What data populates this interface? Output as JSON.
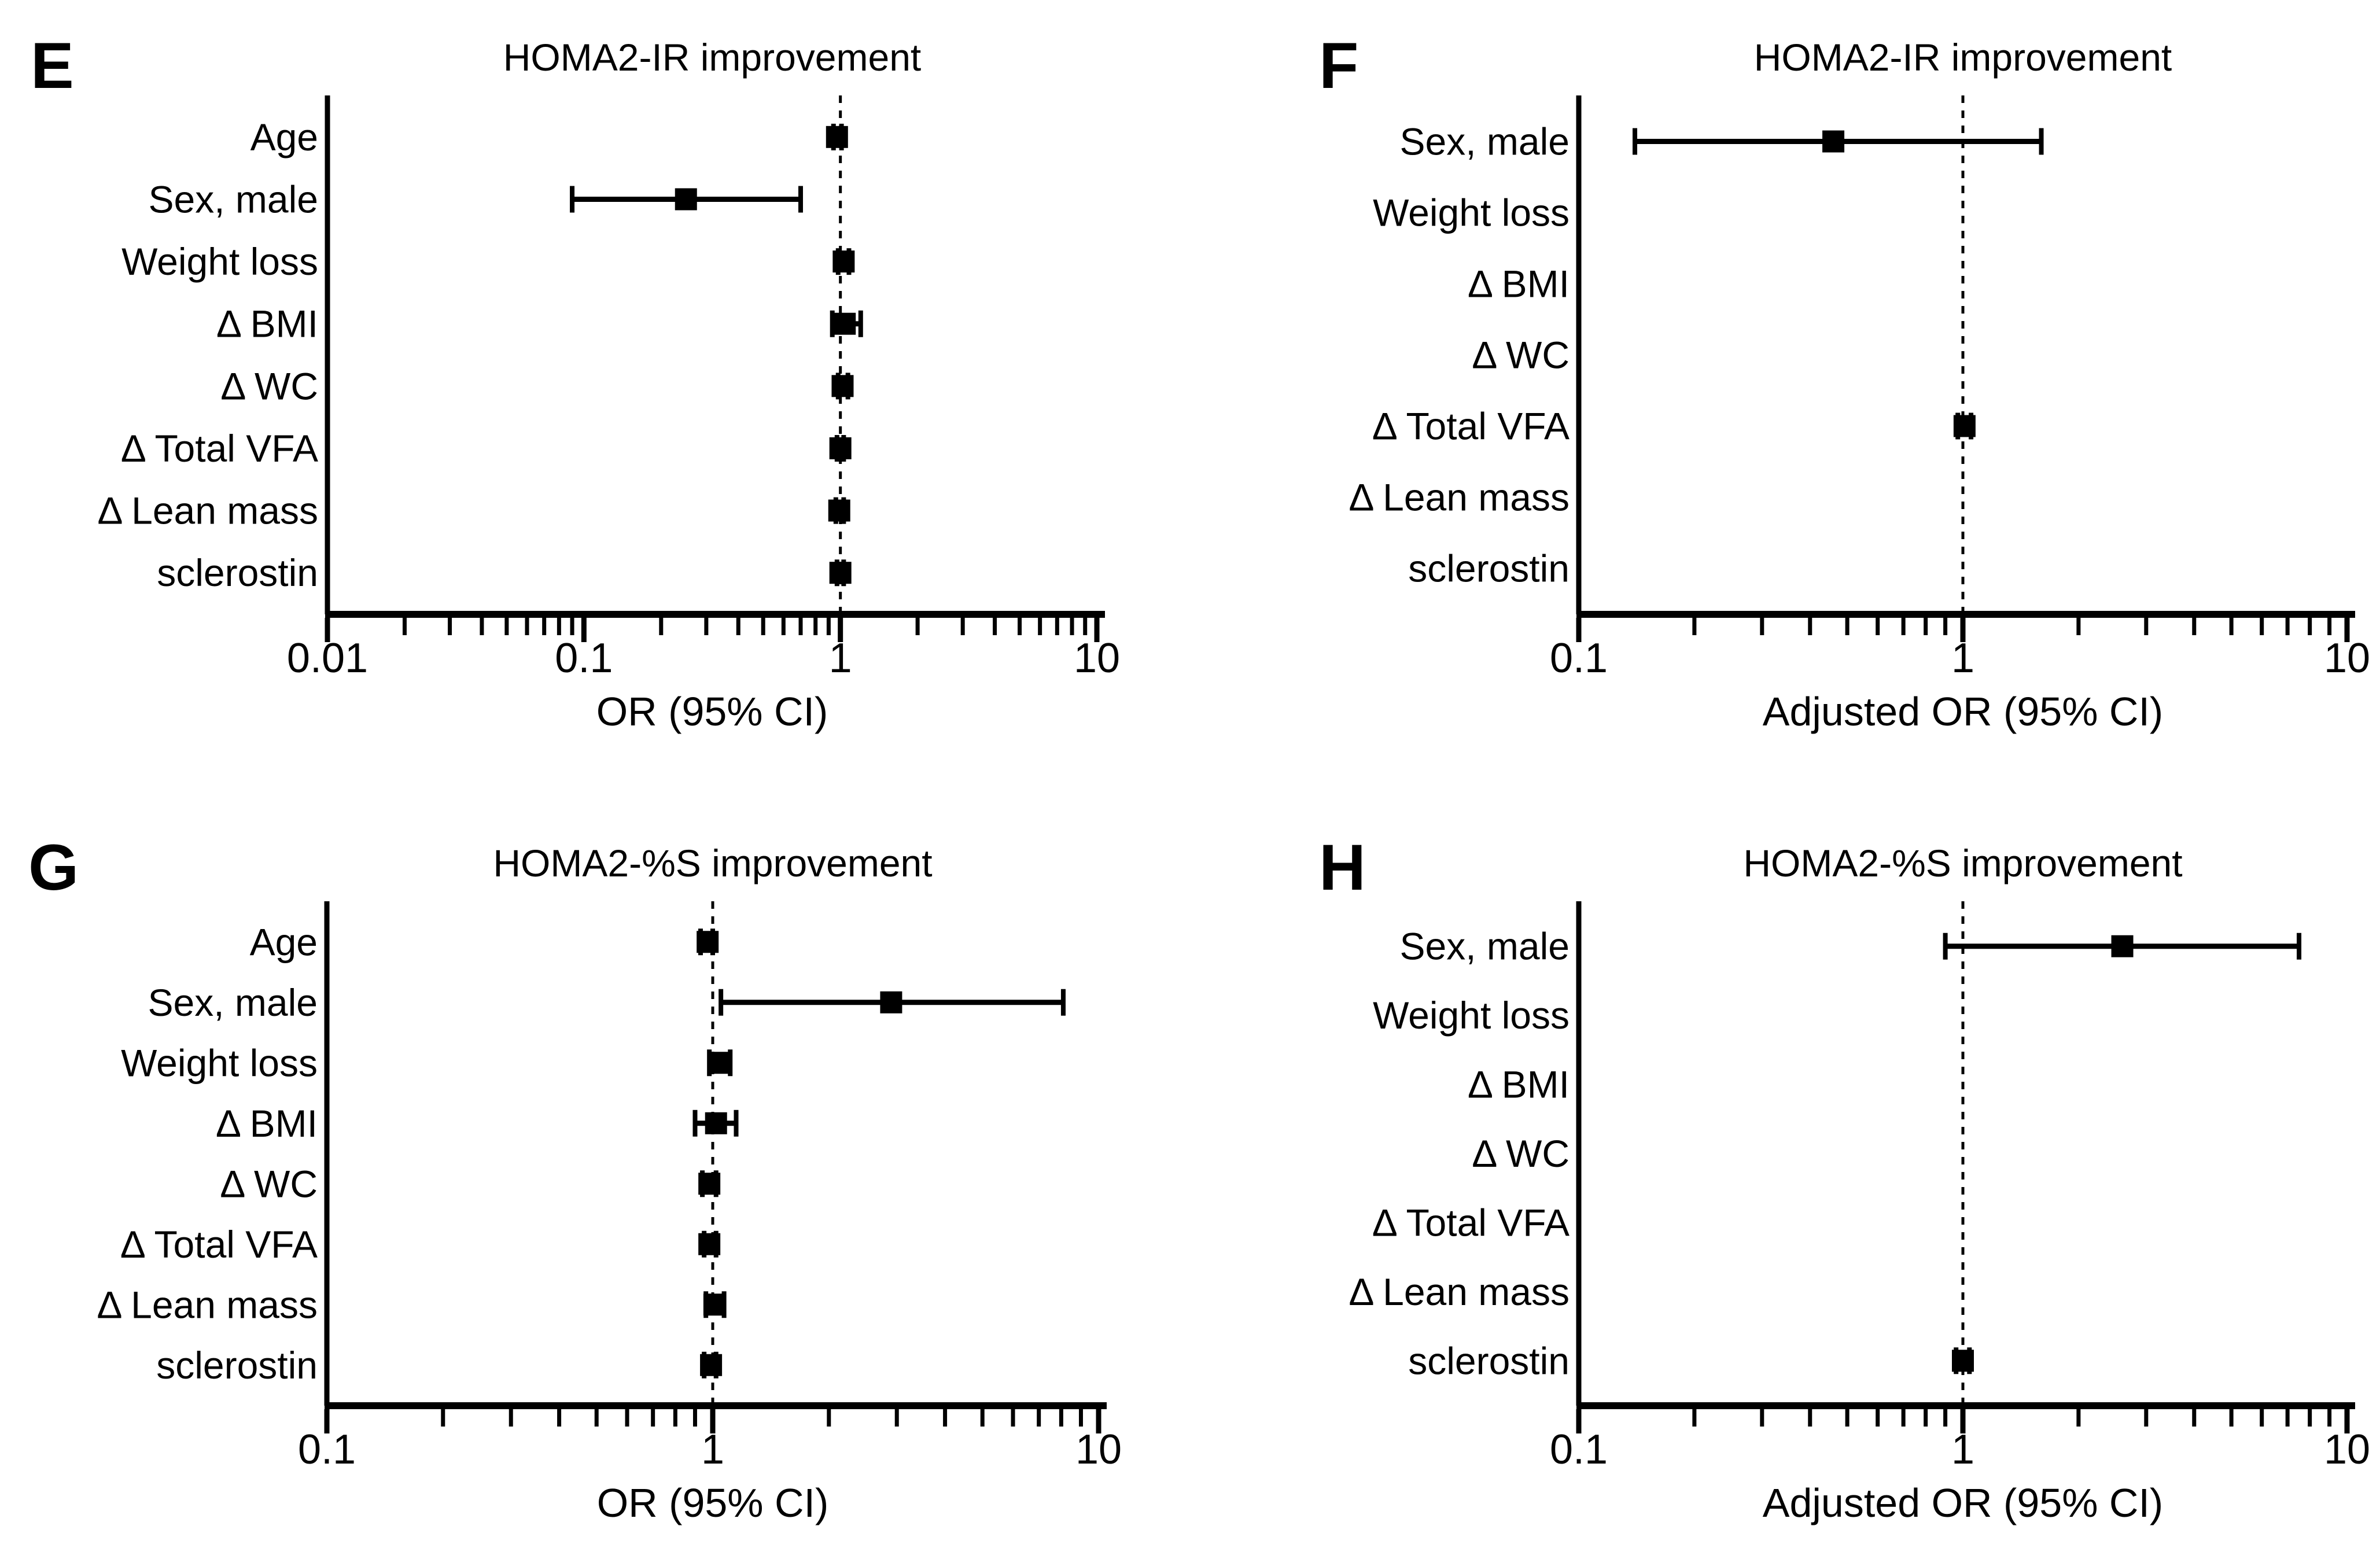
{
  "colors": {
    "background": "#ffffff",
    "ink": "#000000"
  },
  "chart_data": [
    {
      "type": "scatter",
      "variant": "forest-plot",
      "panel_letter": "E",
      "title": "HOMA2-IR improvement",
      "xlabel": "OR (95% CI)",
      "x_scale": "log",
      "xlim": [
        0.01,
        10
      ],
      "x_ticks": [
        0.01,
        0.1,
        1,
        10
      ],
      "x_tick_labels": [
        "0.01",
        "0.1",
        "1",
        "10"
      ],
      "reference_line_x": 1,
      "grid": false,
      "categories": [
        "Age",
        "Sex, male",
        "Weight loss",
        "Δ BMI",
        "Δ WC",
        "Δ Total VFA",
        "Δ Lean mass",
        "sclerostin"
      ],
      "series": [
        {
          "name": "OR",
          "values": [
            0.97,
            0.25,
            1.03,
            1.04,
            1.02,
            1.0,
            0.99,
            1.0
          ],
          "ci_low": [
            0.94,
            0.09,
            0.98,
            0.93,
            0.98,
            0.97,
            0.96,
            0.97
          ],
          "ci_high": [
            1.01,
            0.7,
            1.08,
            1.2,
            1.07,
            1.03,
            1.03,
            1.03
          ]
        }
      ]
    },
    {
      "type": "scatter",
      "variant": "forest-plot",
      "panel_letter": "F",
      "title": "HOMA2-IR improvement",
      "xlabel": "Adjusted OR (95% CI)",
      "x_scale": "log",
      "xlim": [
        0.1,
        10
      ],
      "x_ticks": [
        0.1,
        1,
        10
      ],
      "x_tick_labels": [
        "0.1",
        "1",
        "10"
      ],
      "reference_line_x": 1,
      "grid": false,
      "categories": [
        "Sex, male",
        "Weight loss",
        "Δ BMI",
        "Δ WC",
        "Δ Total VFA",
        "Δ Lean mass",
        "sclerostin"
      ],
      "series": [
        {
          "name": "Adjusted OR",
          "values": [
            0.46,
            null,
            null,
            null,
            1.01,
            null,
            null
          ],
          "ci_low": [
            0.14,
            null,
            null,
            null,
            0.97,
            null,
            null
          ],
          "ci_high": [
            1.6,
            null,
            null,
            null,
            1.05,
            null,
            null
          ]
        }
      ]
    },
    {
      "type": "scatter",
      "variant": "forest-plot",
      "panel_letter": "G",
      "title": "HOMA2-%S improvement",
      "xlabel": "OR (95% CI)",
      "x_scale": "log",
      "xlim": [
        0.1,
        10
      ],
      "x_ticks": [
        0.1,
        1,
        10
      ],
      "x_tick_labels": [
        "0.1",
        "1",
        "10"
      ],
      "reference_line_x": 1,
      "grid": false,
      "categories": [
        "Age",
        "Sex, male",
        "Weight loss",
        "Δ BMI",
        "Δ WC",
        "Δ Total VFA",
        "Δ Lean mass",
        "sclerostin"
      ],
      "series": [
        {
          "name": "OR",
          "values": [
            0.97,
            2.9,
            1.04,
            1.02,
            0.98,
            0.98,
            1.01,
            0.99
          ],
          "ci_low": [
            0.93,
            1.05,
            0.98,
            0.9,
            0.94,
            0.95,
            0.96,
            0.95
          ],
          "ci_high": [
            1.0,
            8.1,
            1.11,
            1.15,
            1.02,
            1.02,
            1.07,
            1.02
          ]
        }
      ]
    },
    {
      "type": "scatter",
      "variant": "forest-plot",
      "panel_letter": "H",
      "title": "HOMA2-%S improvement",
      "xlabel": "Adjusted OR (95% CI)",
      "x_scale": "log",
      "xlim": [
        0.1,
        10
      ],
      "x_ticks": [
        0.1,
        1,
        10
      ],
      "x_tick_labels": [
        "0.1",
        "1",
        "10"
      ],
      "reference_line_x": 1,
      "grid": false,
      "categories": [
        "Sex, male",
        "Weight loss",
        "Δ BMI",
        "Δ WC",
        "Δ Total VFA",
        "Δ Lean mass",
        "sclerostin"
      ],
      "series": [
        {
          "name": "Adjusted OR",
          "values": [
            2.6,
            null,
            null,
            null,
            null,
            null,
            1.0
          ],
          "ci_low": [
            0.9,
            null,
            null,
            null,
            null,
            null,
            0.96
          ],
          "ci_high": [
            7.5,
            null,
            null,
            null,
            null,
            null,
            1.04
          ]
        }
      ]
    }
  ]
}
